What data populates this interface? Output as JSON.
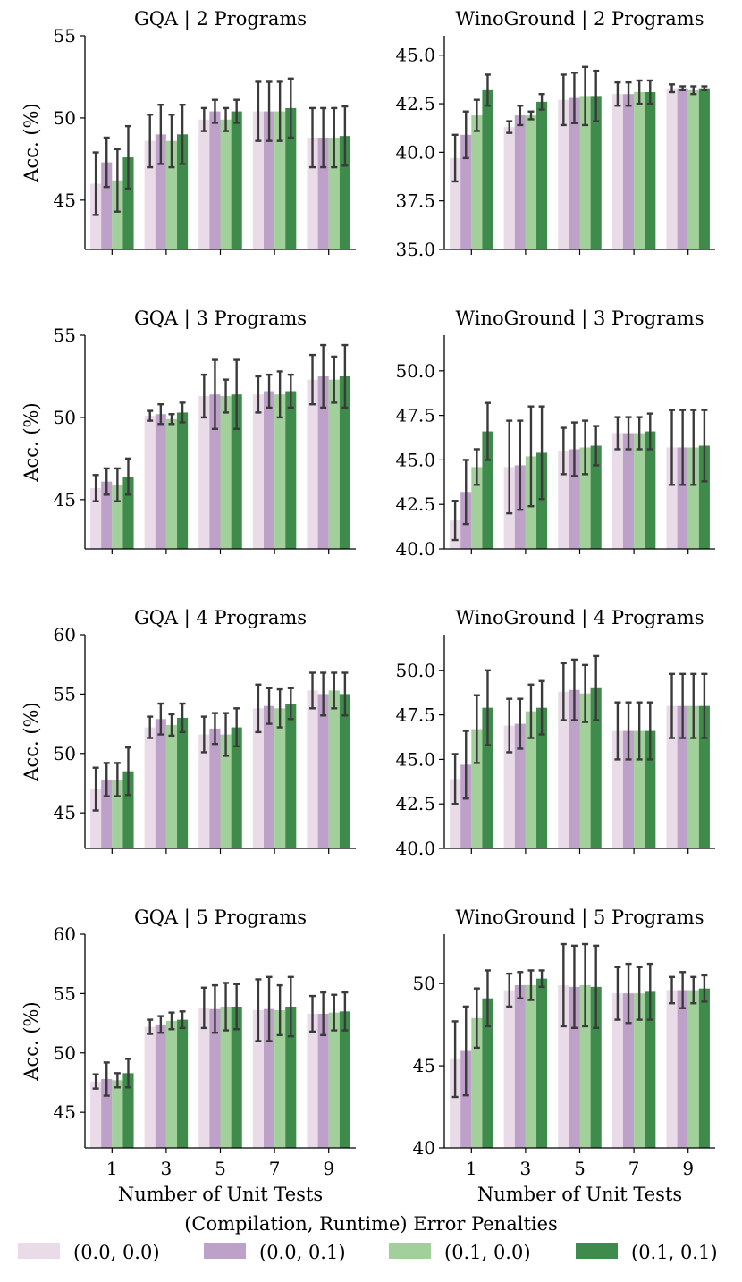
{
  "legend": {
    "title": "(Compilation, Runtime) Error Penalties",
    "entries": [
      {
        "label": "(0.0, 0.0)",
        "color": "#e9dbe8"
      },
      {
        "label": "(0.0, 0.1)",
        "color": "#bea1c9"
      },
      {
        "label": "(0.1, 0.0)",
        "color": "#a2d09a"
      },
      {
        "label": "(0.1, 0.1)",
        "color": "#3f8b4c"
      }
    ]
  },
  "chart_data": [
    {
      "type": "bar",
      "title": "GQA | 2 Programs",
      "ylabel": "Acc. (%)",
      "xlabel": "",
      "categories": [
        "1",
        "3",
        "5",
        "7",
        "9"
      ],
      "ylim": [
        42,
        55
      ],
      "yticks": [
        "45",
        "50",
        "55"
      ],
      "series": [
        {
          "name": "(0.0, 0.0)",
          "values": [
            46.0,
            48.6,
            49.9,
            50.4,
            48.8
          ],
          "err": [
            1.9,
            1.6,
            0.7,
            1.8,
            1.8
          ]
        },
        {
          "name": "(0.0, 0.1)",
          "values": [
            47.3,
            49.0,
            50.4,
            50.4,
            48.8
          ],
          "err": [
            1.5,
            1.8,
            0.7,
            1.8,
            1.8
          ]
        },
        {
          "name": "(0.1, 0.0)",
          "values": [
            46.2,
            48.6,
            49.9,
            50.4,
            48.8
          ],
          "err": [
            1.9,
            1.6,
            0.7,
            1.8,
            1.8
          ]
        },
        {
          "name": "(0.1, 0.1)",
          "values": [
            47.6,
            49.0,
            50.4,
            50.6,
            48.9
          ],
          "err": [
            1.9,
            1.8,
            0.7,
            1.8,
            1.8
          ]
        }
      ]
    },
    {
      "type": "bar",
      "title": "WinoGround | 2 Programs",
      "ylabel": "",
      "xlabel": "",
      "categories": [
        "1",
        "3",
        "5",
        "7",
        "9"
      ],
      "ylim": [
        35,
        46
      ],
      "yticks": [
        "35.0",
        "37.5",
        "40.0",
        "42.5",
        "45.0"
      ],
      "series": [
        {
          "name": "(0.0, 0.0)",
          "values": [
            39.7,
            41.3,
            42.7,
            43.0,
            43.3
          ],
          "err": [
            1.2,
            0.3,
            1.3,
            0.6,
            0.2
          ]
        },
        {
          "name": "(0.0, 0.1)",
          "values": [
            40.9,
            41.9,
            42.8,
            43.0,
            43.3
          ],
          "err": [
            1.2,
            0.5,
            1.3,
            0.6,
            0.1
          ]
        },
        {
          "name": "(0.1, 0.0)",
          "values": [
            41.9,
            41.9,
            42.9,
            43.1,
            43.2
          ],
          "err": [
            0.8,
            0.2,
            1.5,
            0.6,
            0.2
          ]
        },
        {
          "name": "(0.1, 0.1)",
          "values": [
            43.2,
            42.6,
            42.9,
            43.1,
            43.3
          ],
          "err": [
            0.8,
            0.4,
            1.3,
            0.6,
            0.1
          ]
        }
      ]
    },
    {
      "type": "bar",
      "title": "GQA | 3 Programs",
      "ylabel": "Acc. (%)",
      "xlabel": "",
      "categories": [
        "1",
        "3",
        "5",
        "7",
        "9"
      ],
      "ylim": [
        42,
        55
      ],
      "yticks": [
        "45",
        "50",
        "55"
      ],
      "series": [
        {
          "name": "(0.0, 0.0)",
          "values": [
            45.7,
            50.1,
            51.3,
            51.4,
            52.3
          ],
          "err": [
            0.8,
            0.3,
            1.3,
            1.1,
            1.5
          ]
        },
        {
          "name": "(0.0, 0.1)",
          "values": [
            46.1,
            50.2,
            51.4,
            51.6,
            52.5
          ],
          "err": [
            0.8,
            0.6,
            2.1,
            1.0,
            1.9
          ]
        },
        {
          "name": "(0.1, 0.0)",
          "values": [
            45.9,
            49.9,
            51.3,
            51.4,
            52.3
          ],
          "err": [
            1.0,
            0.3,
            1.0,
            1.4,
            1.4
          ]
        },
        {
          "name": "(0.1, 0.1)",
          "values": [
            46.4,
            50.3,
            51.4,
            51.6,
            52.5
          ],
          "err": [
            1.1,
            0.6,
            2.1,
            1.0,
            1.9
          ]
        }
      ]
    },
    {
      "type": "bar",
      "title": "WinoGround | 3 Programs",
      "ylabel": "",
      "xlabel": "",
      "categories": [
        "1",
        "3",
        "5",
        "7",
        "9"
      ],
      "ylim": [
        40,
        52
      ],
      "yticks": [
        "40.0",
        "42.5",
        "45.0",
        "47.5",
        "50.0"
      ],
      "series": [
        {
          "name": "(0.0, 0.0)",
          "values": [
            41.6,
            44.6,
            45.5,
            46.5,
            45.7
          ],
          "err": [
            1.1,
            2.6,
            1.3,
            0.9,
            2.1
          ]
        },
        {
          "name": "(0.0, 0.1)",
          "values": [
            43.2,
            44.7,
            45.6,
            46.5,
            45.7
          ],
          "err": [
            1.8,
            2.5,
            1.5,
            0.9,
            2.1
          ]
        },
        {
          "name": "(0.1, 0.0)",
          "values": [
            44.6,
            45.2,
            45.7,
            46.5,
            45.7
          ],
          "err": [
            1.0,
            2.8,
            1.5,
            0.9,
            2.1
          ]
        },
        {
          "name": "(0.1, 0.1)",
          "values": [
            46.6,
            45.4,
            45.8,
            46.6,
            45.8
          ],
          "err": [
            1.6,
            2.6,
            1.1,
            1.0,
            2.0
          ]
        }
      ]
    },
    {
      "type": "bar",
      "title": "GQA | 4 Programs",
      "ylabel": "Acc. (%)",
      "xlabel": "",
      "categories": [
        "1",
        "3",
        "5",
        "7",
        "9"
      ],
      "ylim": [
        42,
        60
      ],
      "yticks": [
        "45",
        "50",
        "55",
        "60"
      ],
      "series": [
        {
          "name": "(0.0, 0.0)",
          "values": [
            47.0,
            52.2,
            51.6,
            53.8,
            55.3
          ],
          "err": [
            1.8,
            0.9,
            1.5,
            2.0,
            1.5
          ]
        },
        {
          "name": "(0.0, 0.1)",
          "values": [
            47.8,
            52.9,
            52.1,
            54.0,
            55.0
          ],
          "err": [
            1.4,
            1.3,
            1.3,
            1.5,
            1.8
          ]
        },
        {
          "name": "(0.1, 0.0)",
          "values": [
            47.8,
            52.4,
            51.6,
            53.8,
            55.3
          ],
          "err": [
            1.4,
            0.9,
            1.8,
            1.6,
            1.5
          ]
        },
        {
          "name": "(0.1, 0.1)",
          "values": [
            48.5,
            53.0,
            52.2,
            54.2,
            55.0
          ],
          "err": [
            2.0,
            1.2,
            1.6,
            1.3,
            1.8
          ]
        }
      ]
    },
    {
      "type": "bar",
      "title": "WinoGround | 4 Programs",
      "ylabel": "",
      "xlabel": "",
      "categories": [
        "1",
        "3",
        "5",
        "7",
        "9"
      ],
      "ylim": [
        40,
        52
      ],
      "yticks": [
        "40.0",
        "42.5",
        "45.0",
        "47.5",
        "50.0"
      ],
      "series": [
        {
          "name": "(0.0, 0.0)",
          "values": [
            43.9,
            46.9,
            48.8,
            46.6,
            48.0
          ],
          "err": [
            1.4,
            1.5,
            1.6,
            1.6,
            1.8
          ]
        },
        {
          "name": "(0.0, 0.1)",
          "values": [
            44.7,
            47.0,
            48.9,
            46.6,
            48.0
          ],
          "err": [
            1.9,
            1.4,
            1.7,
            1.6,
            1.8
          ]
        },
        {
          "name": "(0.1, 0.0)",
          "values": [
            46.7,
            47.7,
            48.7,
            46.6,
            48.0
          ],
          "err": [
            1.9,
            1.5,
            1.6,
            1.6,
            1.8
          ]
        },
        {
          "name": "(0.1, 0.1)",
          "values": [
            47.9,
            47.9,
            49.0,
            46.6,
            48.0
          ],
          "err": [
            2.1,
            1.5,
            1.8,
            1.6,
            1.8
          ]
        }
      ]
    },
    {
      "type": "bar",
      "title": "GQA | 5 Programs",
      "ylabel": "Acc. (%)",
      "xlabel": "Number of Unit Tests",
      "categories": [
        "1",
        "3",
        "5",
        "7",
        "9"
      ],
      "ylim": [
        42,
        60
      ],
      "yticks": [
        "45",
        "50",
        "55",
        "60"
      ],
      "series": [
        {
          "name": "(0.0, 0.0)",
          "values": [
            47.6,
            52.2,
            53.8,
            53.6,
            53.3
          ],
          "err": [
            0.6,
            0.6,
            1.7,
            2.6,
            1.5
          ]
        },
        {
          "name": "(0.0, 0.1)",
          "values": [
            47.8,
            52.4,
            53.7,
            53.7,
            53.3
          ],
          "err": [
            1.4,
            0.7,
            2.0,
            2.7,
            1.8
          ]
        },
        {
          "name": "(0.1, 0.0)",
          "values": [
            47.7,
            52.7,
            53.9,
            53.6,
            53.4
          ],
          "err": [
            0.6,
            0.7,
            2.0,
            2.1,
            1.5
          ]
        },
        {
          "name": "(0.1, 0.1)",
          "values": [
            48.3,
            52.8,
            53.9,
            53.9,
            53.5
          ],
          "err": [
            1.2,
            0.7,
            1.9,
            2.5,
            1.6
          ]
        }
      ]
    },
    {
      "type": "bar",
      "title": "WinoGround | 5 Programs",
      "ylabel": "",
      "xlabel": "Number of Unit Tests",
      "categories": [
        "1",
        "3",
        "5",
        "7",
        "9"
      ],
      "ylim": [
        40,
        53
      ],
      "yticks": [
        "40",
        "45",
        "50"
      ],
      "series": [
        {
          "name": "(0.0, 0.0)",
          "values": [
            45.4,
            49.6,
            49.9,
            49.4,
            49.6
          ],
          "err": [
            2.3,
            1.0,
            2.5,
            1.6,
            0.8
          ]
        },
        {
          "name": "(0.0, 0.1)",
          "values": [
            45.9,
            49.9,
            49.8,
            49.4,
            49.6
          ],
          "err": [
            2.7,
            0.8,
            2.5,
            1.8,
            1.1
          ]
        },
        {
          "name": "(0.1, 0.0)",
          "values": [
            47.9,
            49.9,
            49.9,
            49.4,
            49.6
          ],
          "err": [
            1.8,
            0.9,
            2.5,
            1.6,
            0.8
          ]
        },
        {
          "name": "(0.1, 0.1)",
          "values": [
            49.1,
            50.3,
            49.8,
            49.5,
            49.7
          ],
          "err": [
            1.7,
            0.5,
            2.5,
            1.7,
            0.8
          ]
        }
      ]
    }
  ]
}
